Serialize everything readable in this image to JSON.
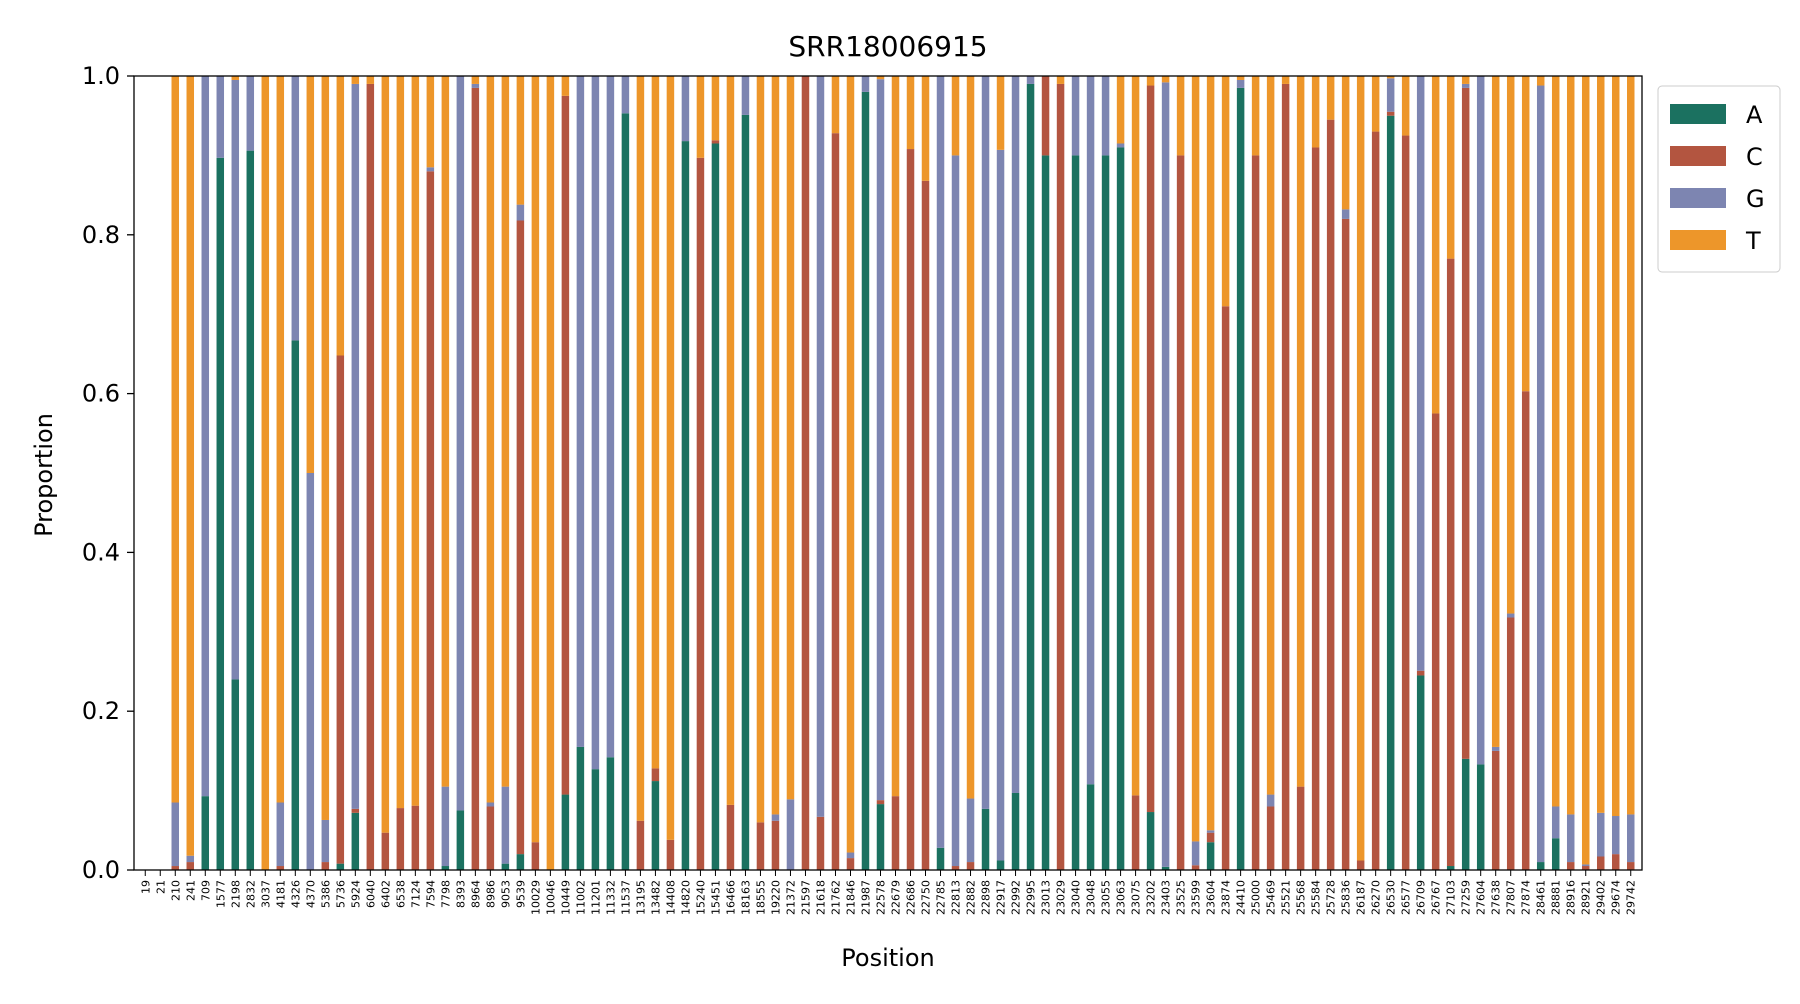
{
  "chart_data": {
    "type": "bar",
    "stacked": true,
    "title": "SRR18006915",
    "xlabel": "Position",
    "ylabel": "Proportion",
    "ylim": [
      0,
      1.0
    ],
    "yticks": [
      0.0,
      0.2,
      0.4,
      0.6,
      0.8,
      1.0
    ],
    "ytick_labels": [
      "0.0",
      "0.2",
      "0.4",
      "0.6",
      "0.8",
      "1.0"
    ],
    "grid": false,
    "legend_position": "outside-top-right",
    "categories": [
      "19",
      "21",
      "210",
      "241",
      "709",
      "1577",
      "2198",
      "2832",
      "3037",
      "4181",
      "4326",
      "4370",
      "5386",
      "5736",
      "5924",
      "6040",
      "6402",
      "6538",
      "7124",
      "7594",
      "7798",
      "8393",
      "8964",
      "8986",
      "9053",
      "9539",
      "10029",
      "10046",
      "10449",
      "11002",
      "11201",
      "11332",
      "11537",
      "13195",
      "13482",
      "14408",
      "14820",
      "15240",
      "15451",
      "16466",
      "18163",
      "18555",
      "19220",
      "21372",
      "21597",
      "21618",
      "21762",
      "21846",
      "21987",
      "22578",
      "22679",
      "22686",
      "22750",
      "22785",
      "22813",
      "22882",
      "22898",
      "22917",
      "22992",
      "22995",
      "23013",
      "23029",
      "23040",
      "23048",
      "23055",
      "23063",
      "23075",
      "23202",
      "23403",
      "23525",
      "23599",
      "23604",
      "23874",
      "24410",
      "25000",
      "25469",
      "25521",
      "25568",
      "25584",
      "25728",
      "25836",
      "26187",
      "26270",
      "26530",
      "26577",
      "26709",
      "26767",
      "27103",
      "27259",
      "27604",
      "27638",
      "27807",
      "27874",
      "28461",
      "28881",
      "28916",
      "28921",
      "29402",
      "29674",
      "29742"
    ],
    "series": [
      {
        "name": "A",
        "color": "#1b7160",
        "values": [
          0,
          0,
          0,
          0,
          0.093,
          0.897,
          0.24,
          0.906,
          0,
          0,
          0.667,
          0,
          0,
          0.008,
          0.072,
          0,
          0,
          0,
          0,
          0,
          0.005,
          0.075,
          0,
          0,
          0.008,
          0.02,
          0,
          0,
          0.095,
          0.155,
          0.127,
          0.142,
          0.953,
          0,
          0.112,
          0,
          0.918,
          0,
          0.915,
          0,
          0.951,
          0,
          0,
          0,
          0,
          0,
          0,
          0,
          0.98,
          0.083,
          0,
          0,
          0,
          0.028,
          0,
          0,
          0.077,
          0.012,
          0.097,
          0.99,
          0.9,
          0,
          0.9,
          0.108,
          0.9,
          0.91,
          0,
          0.073,
          0.004,
          0,
          0,
          0.035,
          0,
          0.985,
          0,
          0,
          0,
          0,
          0,
          0,
          0,
          0,
          0,
          0.95,
          0,
          0.245,
          0,
          0.005,
          0.14,
          0.133,
          0,
          0,
          0,
          0.01,
          0.04,
          0,
          0,
          0,
          0,
          0
        ]
      },
      {
        "name": "C",
        "color": "#b35540",
        "values": [
          0,
          0,
          0.005,
          0.01,
          0,
          0,
          0,
          0,
          0,
          0.005,
          0,
          0,
          0.01,
          0.64,
          0.005,
          0.99,
          0.047,
          0.078,
          0.081,
          0.88,
          0,
          0,
          0.985,
          0.08,
          0,
          0.798,
          0.035,
          0,
          0.88,
          0,
          0,
          0,
          0,
          0.062,
          0.016,
          0.038,
          0,
          0.897,
          0.004,
          0.082,
          0,
          0.06,
          0.062,
          0,
          1.0,
          0.067,
          0.928,
          0.015,
          0,
          0.005,
          0.093,
          0.908,
          0.868,
          0,
          0.005,
          0.01,
          0,
          0,
          0,
          0,
          0.1,
          0.99,
          0,
          0,
          0,
          0,
          0.094,
          0.915,
          0,
          0.9,
          0.006,
          0.012,
          0.71,
          0,
          0.9,
          0.08,
          0.99,
          0.105,
          0.91,
          0.945,
          0.82,
          0.012,
          0.93,
          0.005,
          0.925,
          0.006,
          0.575,
          0.765,
          0.845,
          0,
          0.15,
          0.318,
          0.603,
          0,
          0,
          0.01,
          0.005,
          0.017,
          0.02,
          0.01
        ]
      },
      {
        "name": "G",
        "color": "#7d85b1",
        "values": [
          0,
          0,
          0.08,
          0.008,
          0.907,
          0.103,
          0.755,
          0.094,
          0,
          0.08,
          0.333,
          0.5,
          0.053,
          0,
          0.913,
          0,
          0,
          0,
          0,
          0.005,
          0.1,
          0.925,
          0.005,
          0.005,
          0.097,
          0.02,
          0,
          0,
          0,
          0.845,
          0.873,
          0.858,
          0.047,
          0,
          0,
          0,
          0.082,
          0,
          0,
          0,
          0.049,
          0,
          0.008,
          0.089,
          0,
          0.933,
          0,
          0.007,
          0.02,
          0.908,
          0,
          0,
          0,
          0.972,
          0.895,
          0.08,
          0.923,
          0.895,
          0.903,
          0.01,
          0,
          0,
          0.1,
          0.892,
          0.1,
          0.005,
          0,
          0,
          0.988,
          0,
          0.03,
          0.003,
          0,
          0.01,
          0,
          0.015,
          0,
          0,
          0,
          0,
          0.012,
          0,
          0,
          0.042,
          0,
          0.749,
          0,
          0,
          0.005,
          0.867,
          0.005,
          0.005,
          0,
          0.978,
          0.04,
          0.06,
          0.002,
          0.055,
          0.048,
          0.06
        ]
      },
      {
        "name": "T",
        "color": "#ed962a",
        "values": [
          0,
          0,
          0.915,
          0.982,
          0,
          0,
          0.005,
          0,
          1.0,
          0.915,
          0,
          0.5,
          0.937,
          0.352,
          0.01,
          0.01,
          0.953,
          0.922,
          0.919,
          0.115,
          0.895,
          0,
          0.01,
          0.915,
          0.895,
          0.162,
          0.965,
          1.0,
          0.025,
          0,
          0,
          0,
          0,
          0.938,
          0.872,
          0.962,
          0,
          0.103,
          0.081,
          0.918,
          0,
          0.94,
          0.93,
          0.911,
          0,
          0,
          0.072,
          0.978,
          0,
          0.004,
          0.907,
          0.092,
          0.132,
          0,
          0.1,
          0.91,
          0,
          0.093,
          0,
          0,
          0,
          0.01,
          0,
          0,
          0,
          0.085,
          0.906,
          0.012,
          0.008,
          0.1,
          0.964,
          0.95,
          0.29,
          0.005,
          0.1,
          0.905,
          0.01,
          0.895,
          0.09,
          0.055,
          0.168,
          0.988,
          0.07,
          0.003,
          0.075,
          0,
          0.425,
          0.23,
          0.01,
          0,
          0.845,
          0.677,
          0.397,
          0.012,
          0.92,
          0.93,
          0.993,
          0.928,
          0.932,
          0.93
        ]
      }
    ]
  }
}
